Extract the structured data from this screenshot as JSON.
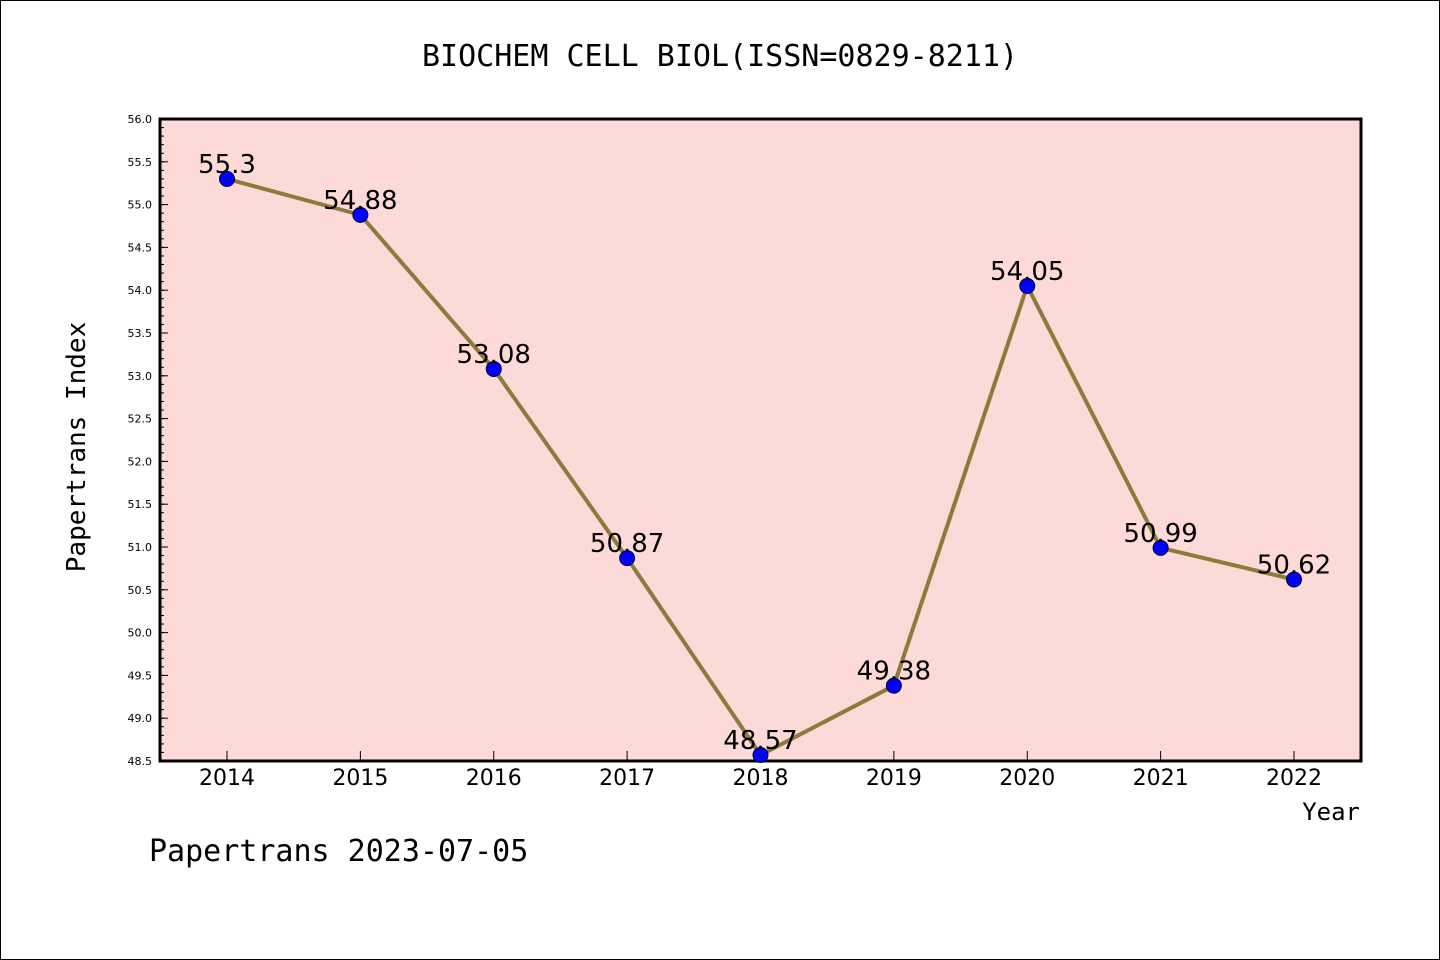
{
  "footer": "Papertrans 2023-07-05",
  "colors": {
    "plot_background": "#fddad8",
    "line": "#8e7a3a",
    "marker": "#0000ff",
    "axis": "#000000"
  },
  "chart_data": {
    "type": "line",
    "title": "BIOCHEM CELL BIOL(ISSN=0829-8211)",
    "xlabel": "Year",
    "ylabel": "Papertrans Index",
    "categories": [
      "2014",
      "2015",
      "2016",
      "2017",
      "2018",
      "2019",
      "2020",
      "2021",
      "2022"
    ],
    "series": [
      {
        "values": [
          55.3,
          54.88,
          53.08,
          50.87,
          48.57,
          49.38,
          54.05,
          50.99,
          50.62
        ],
        "data_labels": [
          "55.3",
          "54.88",
          "53.08",
          "50.87",
          "48.57",
          "49.38",
          "54.05",
          "50.99",
          "50.62"
        ]
      }
    ],
    "ylim": [
      48.5,
      56.0
    ],
    "yticks": [
      "48.5",
      "49.0",
      "49.5",
      "50.0",
      "50.5",
      "51.0",
      "51.5",
      "52.0",
      "52.5",
      "53.0",
      "53.5",
      "54.0",
      "54.5",
      "55.0",
      "55.5",
      "56.0"
    ],
    "grid": false,
    "legend": "none"
  }
}
